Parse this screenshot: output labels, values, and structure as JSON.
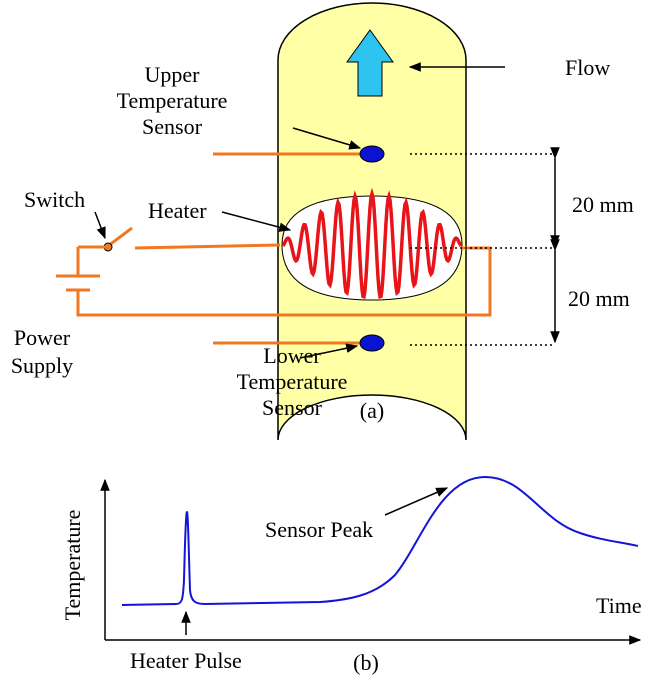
{
  "panel_a": {
    "label": "(a)",
    "flow": "Flow",
    "upper_sensor": [
      "Upper",
      "Temperature",
      "Sensor"
    ],
    "lower_sensor": [
      "Lower",
      "Temperature",
      "Sensor"
    ],
    "heater": "Heater",
    "switch": "Switch",
    "power_supply": [
      "Power",
      "Supply"
    ],
    "upper_spacing": "20 mm",
    "lower_spacing": "20 mm"
  },
  "panel_b": {
    "label": "(b)",
    "y_axis": "Temperature",
    "x_axis": "Time",
    "heater_pulse": "Heater Pulse",
    "sensor_peak": "Sensor Peak"
  }
}
